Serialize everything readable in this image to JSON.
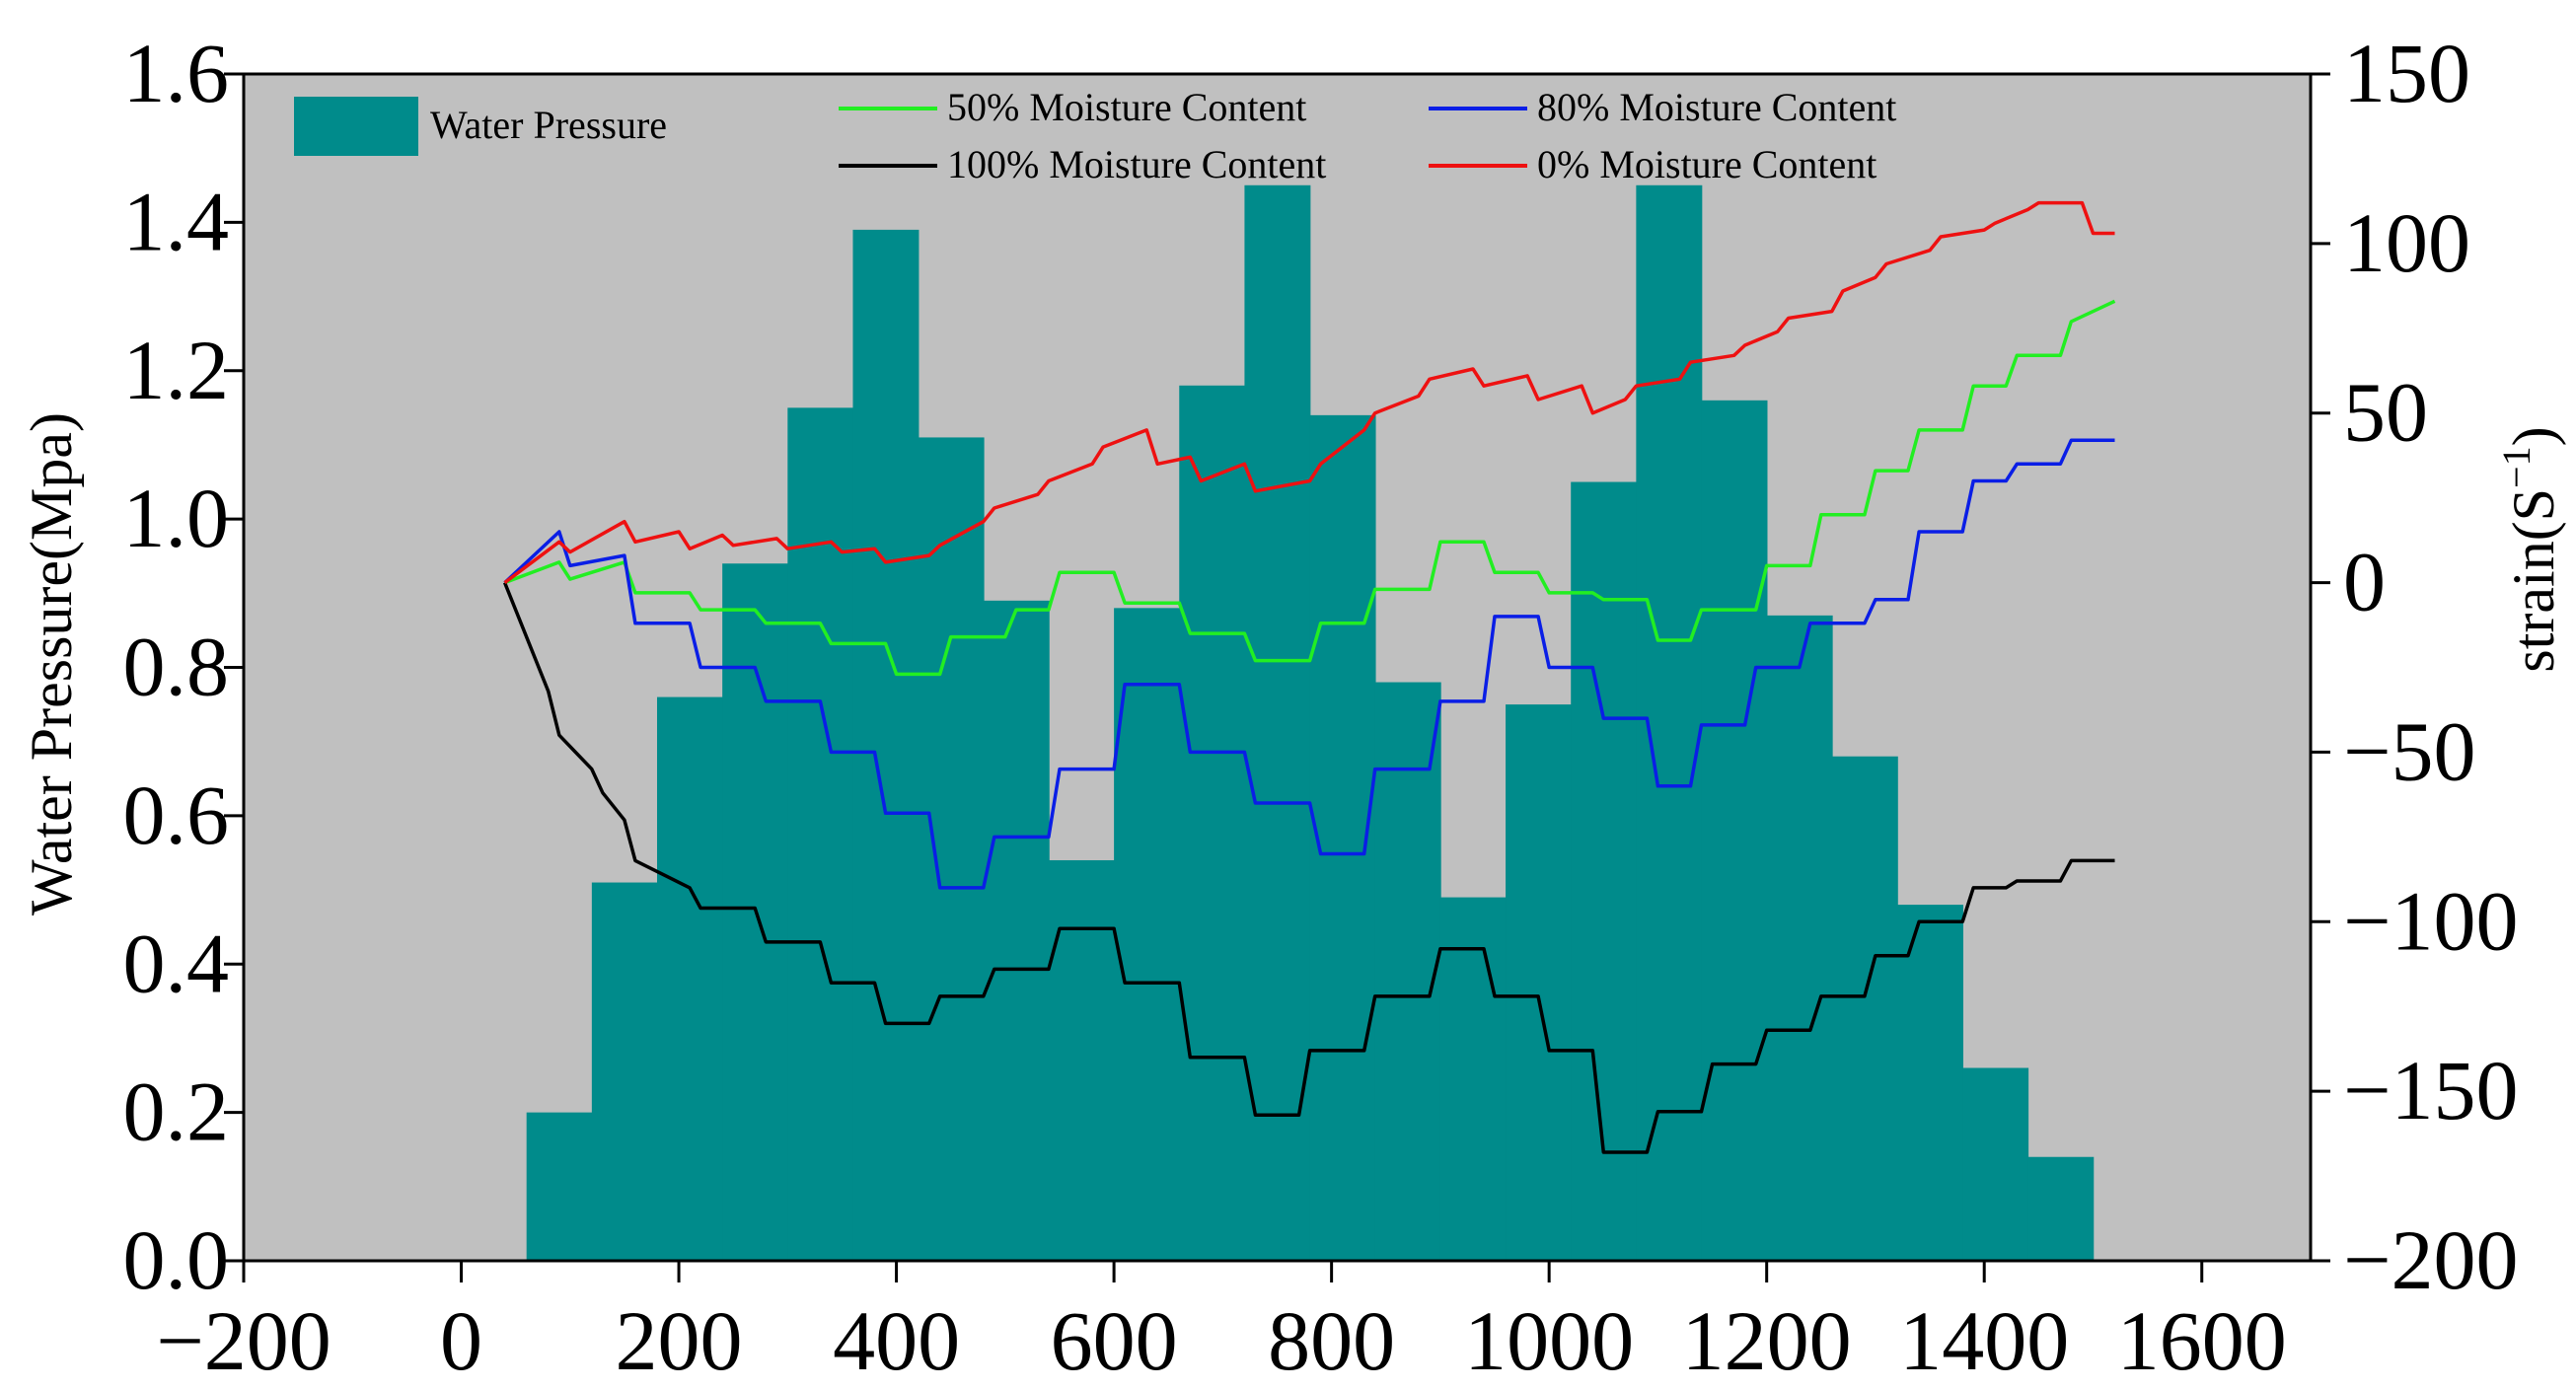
{
  "chart_data": {
    "type": "bar+line",
    "title": "",
    "xlabel": "",
    "ylabel_left": "Water Pressure(Mpa)",
    "ylabel_right_base": "strain(S",
    "ylabel_right_sup": "−1",
    "ylabel_right_tail": ")",
    "xlim": [
      -200,
      1700
    ],
    "ylim_left": [
      0,
      1.6
    ],
    "ylim_right": [
      -200,
      150
    ],
    "x_ticks": [
      -200,
      0,
      200,
      400,
      600,
      800,
      1000,
      1200,
      1400,
      1600
    ],
    "x_tick_labels": [
      "−200",
      "0",
      "200",
      "400",
      "600",
      "800",
      "1000",
      "1200",
      "1400",
      "1600"
    ],
    "y_left_ticks": [
      0.0,
      0.2,
      0.4,
      0.6,
      0.8,
      1.0,
      1.2,
      1.4,
      1.6
    ],
    "y_left_tick_labels": [
      "0.0",
      "0.2",
      "0.4",
      "0.6",
      "0.8",
      "1.0",
      "1.2",
      "1.4",
      "1.6"
    ],
    "y_right_ticks": [
      -200,
      -150,
      -100,
      -50,
      0,
      50,
      100,
      150
    ],
    "y_right_tick_labels": [
      "−200",
      "−150",
      "−100",
      "−50",
      "0",
      "50",
      "100",
      "150"
    ],
    "colors": {
      "plot_bg": "#c0c0c0",
      "bar": "#008b8b",
      "s50": "#22ee22",
      "s80": "#0a1ee6",
      "s100": "#000000",
      "s0": "#ee1111"
    },
    "bars": {
      "name": "Water Pressure",
      "width": 60,
      "x": [
        90,
        150,
        210,
        270,
        330,
        390,
        450,
        510,
        570,
        630,
        690,
        750,
        810,
        870,
        930,
        990,
        1050,
        1110,
        1170,
        1230,
        1290,
        1350,
        1410,
        1470
      ],
      "values": [
        0.2,
        0.51,
        0.76,
        0.94,
        1.15,
        1.39,
        1.11,
        0.89,
        0.54,
        0.88,
        1.18,
        1.45,
        1.14,
        0.78,
        0.49,
        0.75,
        1.05,
        1.45,
        1.16,
        0.87,
        0.68,
        0.48,
        0.26,
        0.14
      ]
    },
    "series": [
      {
        "key": "s50",
        "name": "50% Moisture Content",
        "x": [
          40,
          90,
          100,
          150,
          160,
          210,
          220,
          270,
          280,
          330,
          340,
          390,
          400,
          440,
          450,
          500,
          510,
          540,
          550,
          600,
          610,
          660,
          670,
          720,
          730,
          780,
          790,
          830,
          840,
          890,
          900,
          940,
          950,
          990,
          1000,
          1040,
          1050,
          1090,
          1100,
          1130,
          1140,
          1190,
          1200,
          1240,
          1250,
          1290,
          1300,
          1330,
          1340,
          1380,
          1390,
          1420,
          1430,
          1470,
          1480,
          1520
        ],
        "values": [
          0,
          6,
          1,
          6,
          -3,
          -3,
          -8,
          -8,
          -12,
          -12,
          -18,
          -18,
          -27,
          -27,
          -16,
          -16,
          -8,
          -8,
          3,
          3,
          -6,
          -6,
          -15,
          -15,
          -23,
          -23,
          -12,
          -12,
          -2,
          -2,
          12,
          12,
          3,
          3,
          -3,
          -3,
          -5,
          -5,
          -17,
          -17,
          -8,
          -8,
          5,
          5,
          20,
          20,
          33,
          33,
          45,
          45,
          58,
          58,
          67,
          67,
          77,
          83
        ]
      },
      {
        "key": "s80",
        "name": "80% Moisture Content",
        "x": [
          40,
          90,
          100,
          150,
          160,
          210,
          220,
          270,
          280,
          330,
          340,
          380,
          390,
          430,
          440,
          480,
          490,
          540,
          550,
          600,
          610,
          660,
          670,
          720,
          730,
          780,
          790,
          830,
          840,
          890,
          900,
          940,
          950,
          990,
          1000,
          1040,
          1050,
          1090,
          1100,
          1130,
          1140,
          1180,
          1190,
          1230,
          1240,
          1290,
          1300,
          1330,
          1340,
          1380,
          1390,
          1420,
          1430,
          1470,
          1480,
          1520
        ],
        "values": [
          0,
          15,
          5,
          8,
          -12,
          -12,
          -25,
          -25,
          -35,
          -35,
          -50,
          -50,
          -68,
          -68,
          -90,
          -90,
          -75,
          -75,
          -55,
          -55,
          -30,
          -30,
          -50,
          -50,
          -65,
          -65,
          -80,
          -80,
          -55,
          -55,
          -35,
          -35,
          -10,
          -10,
          -25,
          -25,
          -40,
          -40,
          -60,
          -60,
          -42,
          -42,
          -25,
          -25,
          -12,
          -12,
          -5,
          -5,
          15,
          15,
          30,
          30,
          35,
          35,
          42,
          42
        ]
      },
      {
        "key": "s100",
        "name": "100% Moisture Content",
        "x": [
          40,
          80,
          90,
          120,
          130,
          150,
          160,
          210,
          220,
          270,
          280,
          330,
          340,
          380,
          390,
          430,
          440,
          480,
          490,
          540,
          550,
          600,
          610,
          660,
          670,
          720,
          730,
          770,
          780,
          830,
          840,
          890,
          900,
          940,
          950,
          990,
          1000,
          1040,
          1050,
          1090,
          1100,
          1140,
          1150,
          1190,
          1200,
          1240,
          1250,
          1290,
          1300,
          1330,
          1340,
          1380,
          1390,
          1420,
          1430,
          1470,
          1480,
          1520
        ],
        "values": [
          0,
          -32,
          -45,
          -55,
          -62,
          -70,
          -82,
          -90,
          -96,
          -96,
          -106,
          -106,
          -118,
          -118,
          -130,
          -130,
          -122,
          -122,
          -114,
          -114,
          -102,
          -102,
          -118,
          -118,
          -140,
          -140,
          -157,
          -157,
          -138,
          -138,
          -122,
          -122,
          -108,
          -108,
          -122,
          -122,
          -138,
          -138,
          -168,
          -168,
          -156,
          -156,
          -142,
          -142,
          -132,
          -132,
          -122,
          -122,
          -110,
          -110,
          -100,
          -100,
          -90,
          -90,
          -88,
          -88,
          -82,
          -82
        ]
      },
      {
        "key": "s0",
        "name": "0% Moisture Content",
        "x": [
          40,
          90,
          100,
          150,
          160,
          200,
          210,
          240,
          250,
          290,
          300,
          340,
          350,
          380,
          390,
          430,
          440,
          480,
          490,
          530,
          540,
          580,
          590,
          630,
          640,
          670,
          680,
          720,
          730,
          780,
          790,
          830,
          840,
          880,
          890,
          930,
          940,
          980,
          990,
          1030,
          1040,
          1070,
          1080,
          1120,
          1130,
          1170,
          1180,
          1210,
          1220,
          1260,
          1270,
          1300,
          1310,
          1350,
          1360,
          1400,
          1410,
          1440,
          1450,
          1490,
          1500,
          1520
        ],
        "values": [
          0,
          12,
          9,
          18,
          12,
          15,
          10,
          14,
          11,
          13,
          10,
          12,
          9,
          10,
          6,
          8,
          11,
          18,
          22,
          26,
          30,
          35,
          40,
          45,
          35,
          37,
          30,
          35,
          27,
          30,
          35,
          45,
          50,
          55,
          60,
          63,
          58,
          61,
          54,
          58,
          50,
          54,
          58,
          60,
          65,
          67,
          70,
          74,
          78,
          80,
          86,
          90,
          94,
          98,
          102,
          104,
          106,
          110,
          112,
          112,
          103,
          103
        ]
      }
    ],
    "legend": {
      "placement": "top",
      "items": [
        {
          "key": "bar",
          "label": "Water Pressure"
        },
        {
          "key": "s50",
          "label": "50% Moisture Content"
        },
        {
          "key": "s80",
          "label": "80% Moisture Content"
        },
        {
          "key": "s100",
          "label": "100% Moisture Content"
        },
        {
          "key": "s0",
          "label": "0% Moisture Content"
        }
      ]
    }
  }
}
